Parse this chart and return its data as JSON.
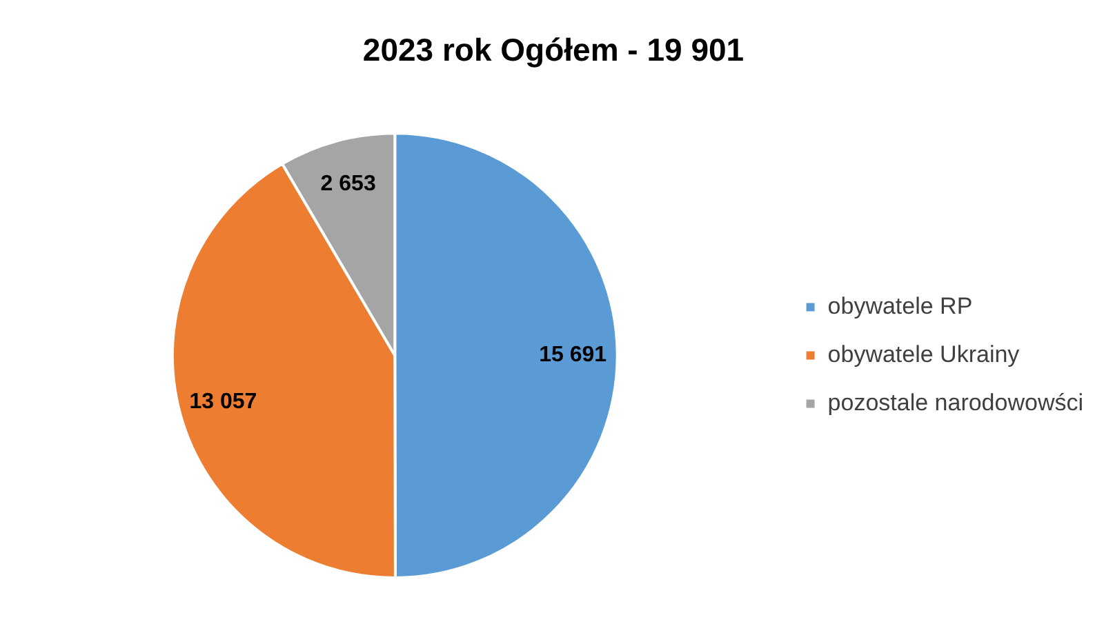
{
  "chart_data": {
    "type": "pie",
    "title": "2023 rok Ogółem - 19 901",
    "categories": [
      "obywatele RP",
      "obywatele Ukrainy",
      "pozostale narodowowści"
    ],
    "values": [
      15691,
      13057,
      2653
    ],
    "colors": [
      "#5b9bd5",
      "#ed7d31",
      "#a5a5a5"
    ],
    "value_labels": [
      "15 691",
      "13 057",
      "2 653"
    ],
    "legend": "right"
  }
}
